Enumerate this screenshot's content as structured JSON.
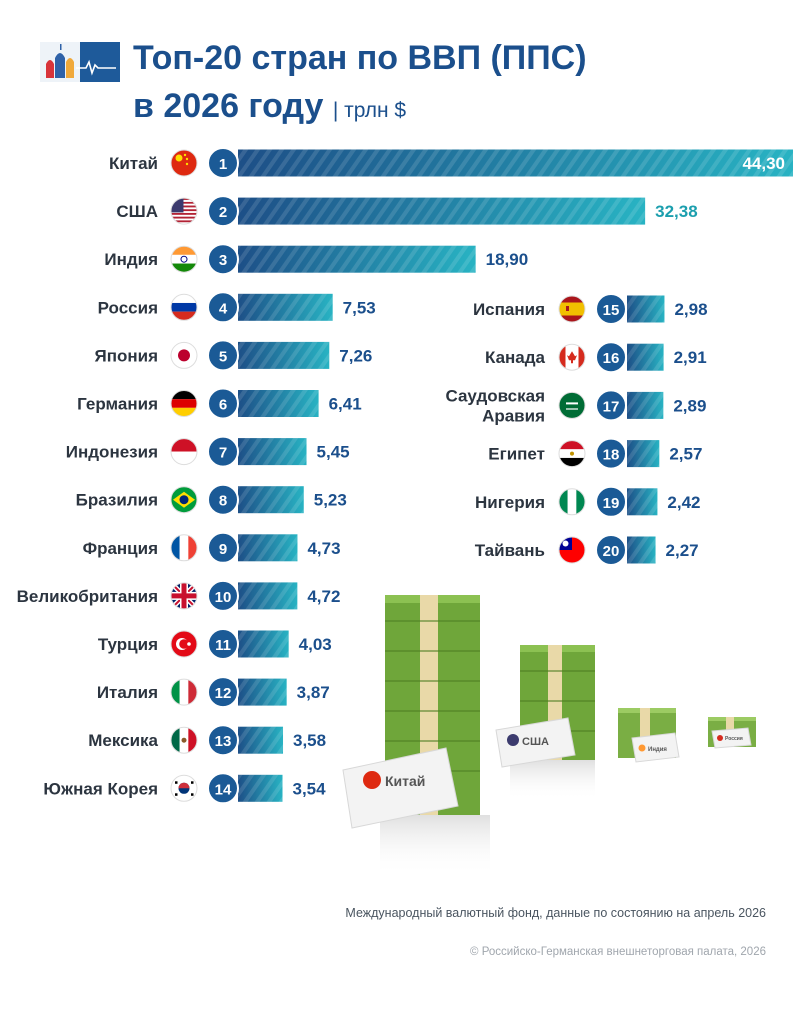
{
  "title_line1": "Топ-20 стран по ВВП (ППС)",
  "title_line2": "в 2026 году",
  "unit": "| трлн $",
  "source": "Международный валютный фонд, данные по состоянию на апрель 2026",
  "copyright": "© Российско-Германская внешнеторговая палата, 2026",
  "decoration_labels": {
    "china": "Китай",
    "usa": "США",
    "india": "Индия",
    "russia": "Россия"
  },
  "colors": {
    "title": "#1b4f8c",
    "bar_dark": "#1d4f87",
    "bar_light": "#28b3c3",
    "badge": "#1b5a96",
    "value": "#1b4f8c"
  },
  "chart_data": {
    "type": "bar",
    "orientation": "horizontal",
    "unit": "трлн $",
    "items": [
      {
        "rank": 1,
        "country": "Китай",
        "value": 44.3,
        "label": "44,30",
        "flag": "china-flag-icon"
      },
      {
        "rank": 2,
        "country": "США",
        "value": 32.38,
        "label": "32,38",
        "flag": "usa-flag-icon"
      },
      {
        "rank": 3,
        "country": "Индия",
        "value": 18.9,
        "label": "18,90",
        "flag": "india-flag-icon"
      },
      {
        "rank": 4,
        "country": "Россия",
        "value": 7.53,
        "label": "7,53",
        "flag": "russia-flag-icon"
      },
      {
        "rank": 5,
        "country": "Япония",
        "value": 7.26,
        "label": "7,26",
        "flag": "japan-flag-icon"
      },
      {
        "rank": 6,
        "country": "Германия",
        "value": 6.41,
        "label": "6,41",
        "flag": "germany-flag-icon"
      },
      {
        "rank": 7,
        "country": "Индонезия",
        "value": 5.45,
        "label": "5,45",
        "flag": "indonesia-flag-icon"
      },
      {
        "rank": 8,
        "country": "Бразилия",
        "value": 5.23,
        "label": "5,23",
        "flag": "brazil-flag-icon"
      },
      {
        "rank": 9,
        "country": "Франция",
        "value": 4.73,
        "label": "4,73",
        "flag": "france-flag-icon"
      },
      {
        "rank": 10,
        "country": "Великобритания",
        "value": 4.72,
        "label": "4,72",
        "flag": "uk-flag-icon"
      },
      {
        "rank": 11,
        "country": "Турция",
        "value": 4.03,
        "label": "4,03",
        "flag": "turkey-flag-icon"
      },
      {
        "rank": 12,
        "country": "Италия",
        "value": 3.87,
        "label": "3,87",
        "flag": "italy-flag-icon"
      },
      {
        "rank": 13,
        "country": "Мексика",
        "value": 3.58,
        "label": "3,58",
        "flag": "mexico-flag-icon"
      },
      {
        "rank": 14,
        "country": "Южная Корея",
        "value": 3.54,
        "label": "3,54",
        "flag": "south-korea-flag-icon"
      },
      {
        "rank": 15,
        "country": "Испания",
        "value": 2.98,
        "label": "2,98",
        "flag": "spain-flag-icon"
      },
      {
        "rank": 16,
        "country": "Канада",
        "value": 2.91,
        "label": "2,91",
        "flag": "canada-flag-icon"
      },
      {
        "rank": 17,
        "country": [
          "Саудовская",
          "Аравия"
        ],
        "value": 2.89,
        "label": "2,89",
        "flag": "saudi-arabia-flag-icon"
      },
      {
        "rank": 18,
        "country": "Египет",
        "value": 2.57,
        "label": "2,57",
        "flag": "egypt-flag-icon"
      },
      {
        "rank": 19,
        "country": "Нигерия",
        "value": 2.42,
        "label": "2,42",
        "flag": "nigeria-flag-icon"
      },
      {
        "rank": 20,
        "country": "Тайвань",
        "value": 2.27,
        "label": "2,27",
        "flag": "taiwan-flag-icon"
      }
    ]
  }
}
